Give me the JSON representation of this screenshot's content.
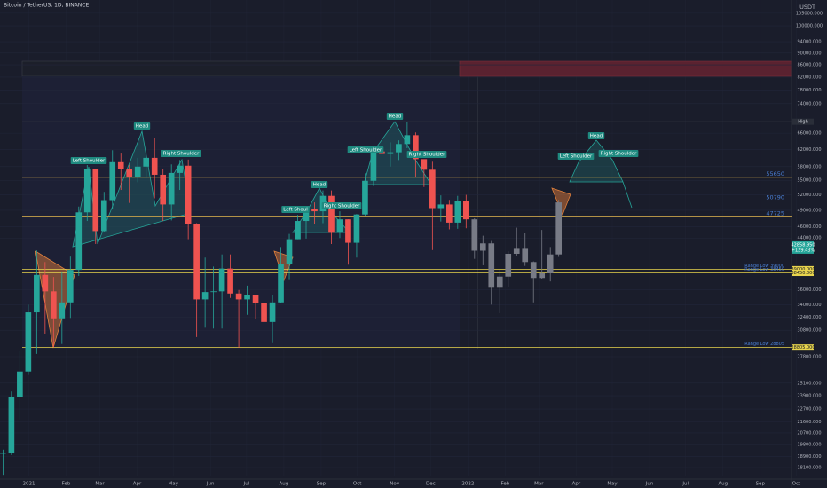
{
  "chart_data": {
    "type": "candlestick",
    "title": "Bitcoin / TetherUS, 1D, BINANCE",
    "currency": "USDT",
    "log_scale": true,
    "grid": true,
    "up_color": "#26a69a",
    "down_color": "#ef5350",
    "ylim": [
      17550,
      110500
    ],
    "xlim": [
      "2020-12-08",
      "2022-09-27"
    ],
    "yticks": [
      {
        "value": 105000,
        "label": "105000.000"
      },
      {
        "value": 100000,
        "label": "100000.000"
      },
      {
        "value": 94000,
        "label": "94000.000"
      },
      {
        "value": 90000,
        "label": "90000.000"
      },
      {
        "value": 86000,
        "label": "86000.000"
      },
      {
        "value": 82000,
        "label": "82000.000"
      },
      {
        "value": 78000,
        "label": "78000.000"
      },
      {
        "value": 74000,
        "label": "74000.000"
      },
      {
        "value": 66000,
        "label": "66000.000"
      },
      {
        "value": 62000,
        "label": "62000.000"
      },
      {
        "value": 58000,
        "label": "58000.000"
      },
      {
        "value": 55000,
        "label": "55000.000"
      },
      {
        "value": 52000,
        "label": "52000.000"
      },
      {
        "value": 49000,
        "label": "49000.000"
      },
      {
        "value": 46000,
        "label": "46000.000"
      },
      {
        "value": 44000,
        "label": "44000.000"
      },
      {
        "value": 36000,
        "label": "36000.000"
      },
      {
        "value": 34000,
        "label": "34000.000"
      },
      {
        "value": 32400,
        "label": "32400.000"
      },
      {
        "value": 30800,
        "label": "30800.000"
      },
      {
        "value": 27800,
        "label": "27800.000"
      },
      {
        "value": 25100,
        "label": "25100.000"
      },
      {
        "value": 23900,
        "label": "23900.000"
      },
      {
        "value": 22700,
        "label": "22700.000"
      },
      {
        "value": 21600,
        "label": "21600.000"
      },
      {
        "value": 20700,
        "label": "20700.000"
      },
      {
        "value": 19800,
        "label": "19800.000"
      },
      {
        "value": 18900,
        "label": "18900.000"
      },
      {
        "value": 18100,
        "label": "18100.000"
      }
    ],
    "xticks": [
      {
        "value": "2021-01-01",
        "label": "2021"
      },
      {
        "value": "2021-02-01",
        "label": "Feb"
      },
      {
        "value": "2021-03-01",
        "label": "Mar"
      },
      {
        "value": "2021-04-01",
        "label": "Apr"
      },
      {
        "value": "2021-05-01",
        "label": "May"
      },
      {
        "value": "2021-06-01",
        "label": "Jun"
      },
      {
        "value": "2021-07-01",
        "label": "Jul"
      },
      {
        "value": "2021-08-01",
        "label": "Aug"
      },
      {
        "value": "2021-09-01",
        "label": "Sep"
      },
      {
        "value": "2021-10-01",
        "label": "Oct"
      },
      {
        "value": "2021-11-01",
        "label": "Nov"
      },
      {
        "value": "2021-12-01",
        "label": "Dec"
      },
      {
        "value": "2022-01-01",
        "label": "2022"
      },
      {
        "value": "2022-02-01",
        "label": "Feb"
      },
      {
        "value": "2022-03-01",
        "label": "Mar"
      },
      {
        "value": "2022-04-01",
        "label": "Apr"
      },
      {
        "value": "2022-05-01",
        "label": "May"
      },
      {
        "value": "2022-06-01",
        "label": "Jun"
      },
      {
        "value": "2022-07-01",
        "label": "Jul"
      },
      {
        "value": "2022-08-01",
        "label": "Aug"
      },
      {
        "value": "2022-09-01",
        "label": "Sep"
      },
      {
        "value": "2022-10-01",
        "label": "Oct"
      }
    ],
    "candles": {
      "x": [
        "2020-12-07",
        "2020-12-14",
        "2020-12-21",
        "2020-12-28",
        "2021-01-04",
        "2021-01-11",
        "2021-01-18",
        "2021-01-25",
        "2021-02-01",
        "2021-02-08",
        "2021-02-15",
        "2021-02-22",
        "2021-03-01",
        "2021-03-08",
        "2021-03-15",
        "2021-03-22",
        "2021-03-29",
        "2021-04-05",
        "2021-04-12",
        "2021-04-19",
        "2021-04-26",
        "2021-05-03",
        "2021-05-10",
        "2021-05-17",
        "2021-05-24",
        "2021-05-31",
        "2021-06-07",
        "2021-06-14",
        "2021-06-21",
        "2021-06-28",
        "2021-07-05",
        "2021-07-12",
        "2021-07-19",
        "2021-07-26",
        "2021-08-02",
        "2021-08-09",
        "2021-08-16",
        "2021-08-23",
        "2021-08-30",
        "2021-09-06",
        "2021-09-13",
        "2021-09-20",
        "2021-09-27",
        "2021-10-04",
        "2021-10-11",
        "2021-10-18",
        "2021-10-25",
        "2021-11-01",
        "2021-11-08",
        "2021-11-15",
        "2021-11-22",
        "2021-11-29",
        "2021-12-06",
        "2021-12-13",
        "2021-12-20",
        "2021-12-27"
      ],
      "open": [
        19150,
        19150,
        23800,
        26250,
        33000,
        38150,
        35800,
        32250,
        34300,
        38900,
        48600,
        57450,
        45200,
        50950,
        59000,
        57400,
        55800,
        58000,
        60000,
        56200,
        50100,
        56600,
        58200,
        46400,
        34700,
        35700,
        35800,
        39100,
        35500,
        34700,
        35300,
        34250,
        31800,
        34300,
        39850,
        43800,
        47000,
        49300,
        48800,
        51800,
        44900,
        47300,
        43200,
        48200,
        54900,
        61500,
        60900,
        61300,
        63300,
        65500,
        59700,
        57300,
        49400,
        50100,
        46700,
        50800
      ],
      "high": [
        19400,
        24300,
        28400,
        34000,
        41950,
        40100,
        37850,
        38500,
        40950,
        49700,
        58350,
        57500,
        52600,
        61800,
        61000,
        58400,
        60000,
        61300,
        64850,
        57500,
        58500,
        59500,
        59600,
        46600,
        40800,
        39400,
        41300,
        41300,
        36000,
        36600,
        35300,
        34700,
        35300,
        42500,
        44700,
        48100,
        49400,
        50500,
        52900,
        52900,
        48800,
        47300,
        48300,
        56500,
        62000,
        67000,
        63700,
        64200,
        69000,
        66200,
        59500,
        59100,
        51900,
        51000,
        51800,
        52000
      ],
      "low": [
        17600,
        19000,
        21800,
        25900,
        28100,
        30400,
        28800,
        29200,
        32300,
        38000,
        47000,
        43000,
        44950,
        49300,
        53000,
        50400,
        54600,
        55500,
        51300,
        47000,
        47100,
        53000,
        43800,
        30000,
        31100,
        31000,
        31000,
        34900,
        28800,
        32700,
        32200,
        31100,
        29300,
        34200,
        37400,
        43800,
        43900,
        46400,
        46600,
        43000,
        44000,
        39700,
        40800,
        47900,
        53800,
        59700,
        58000,
        59500,
        62300,
        55600,
        53600,
        42000,
        46900,
        45500,
        45600,
        45700
      ],
      "close": [
        19150,
        23800,
        26250,
        33000,
        38150,
        35800,
        32250,
        34300,
        38900,
        48600,
        57450,
        45200,
        50950,
        59000,
        57400,
        55800,
        58000,
        60000,
        56200,
        50100,
        56600,
        58200,
        46400,
        34700,
        35700,
        35800,
        39100,
        35500,
        34700,
        35300,
        34250,
        31800,
        34300,
        39850,
        43800,
        47000,
        49300,
        48800,
        51800,
        44900,
        47300,
        43200,
        48200,
        54900,
        61500,
        60900,
        61300,
        63300,
        65500,
        59700,
        57300,
        49400,
        50100,
        46700,
        50800,
        47300
      ]
    },
    "projection": {
      "color": "#787b86",
      "x": [
        "2022-01-03",
        "2022-01-10",
        "2022-01-17",
        "2022-01-24",
        "2022-01-31",
        "2022-02-07",
        "2022-02-14",
        "2022-02-21",
        "2022-02-28",
        "2022-03-07",
        "2022-03-14"
      ],
      "open": [
        47300,
        41900,
        43100,
        36300,
        37900,
        41400,
        42200,
        40100,
        37700,
        38400,
        41300
      ],
      "high": [
        47500,
        44400,
        43500,
        38900,
        41800,
        45800,
        44800,
        40200,
        45400,
        42500,
        51000
      ],
      "low": [
        40600,
        39600,
        34000,
        32900,
        36400,
        41100,
        39500,
        34300,
        37500,
        37200,
        40900
      ],
      "close": [
        41900,
        43100,
        36300,
        37900,
        41400,
        42200,
        40100,
        37700,
        38400,
        41300,
        50500
      ]
    },
    "levels": [
      {
        "value": 69000,
        "axis_label": "High",
        "color": "#363a45"
      },
      {
        "value": 55650,
        "label": "55650",
        "color": "#c8a24a"
      },
      {
        "value": 50790,
        "label": "50790",
        "color": "#c8a24a"
      },
      {
        "value": 47725,
        "label": "47725",
        "color": "#c8a24a"
      },
      {
        "value": 39000,
        "label": "Range Low 39000",
        "axis_label": "39000.000",
        "color": "#e8d44d"
      },
      {
        "value": 38450,
        "label": "Range Low 38450",
        "axis_label": "38450.000",
        "color": "#e8d44d"
      },
      {
        "value": 28805,
        "label": "Range Low 28805",
        "axis_label": "28805.000",
        "color": "#e8d44d"
      }
    ],
    "last_price": {
      "value": 42858.95,
      "label": "42858.950",
      "change": "+129.43%"
    },
    "annotations": [
      "Left Shoulder",
      "Head",
      "Right Shoulder",
      "Left Shoul",
      "Head",
      "Right Shoulder",
      "Left Shoulder",
      "Head",
      "Right Shoulder",
      "Left Shoulder",
      "Head",
      "Right Shoulder"
    ]
  }
}
